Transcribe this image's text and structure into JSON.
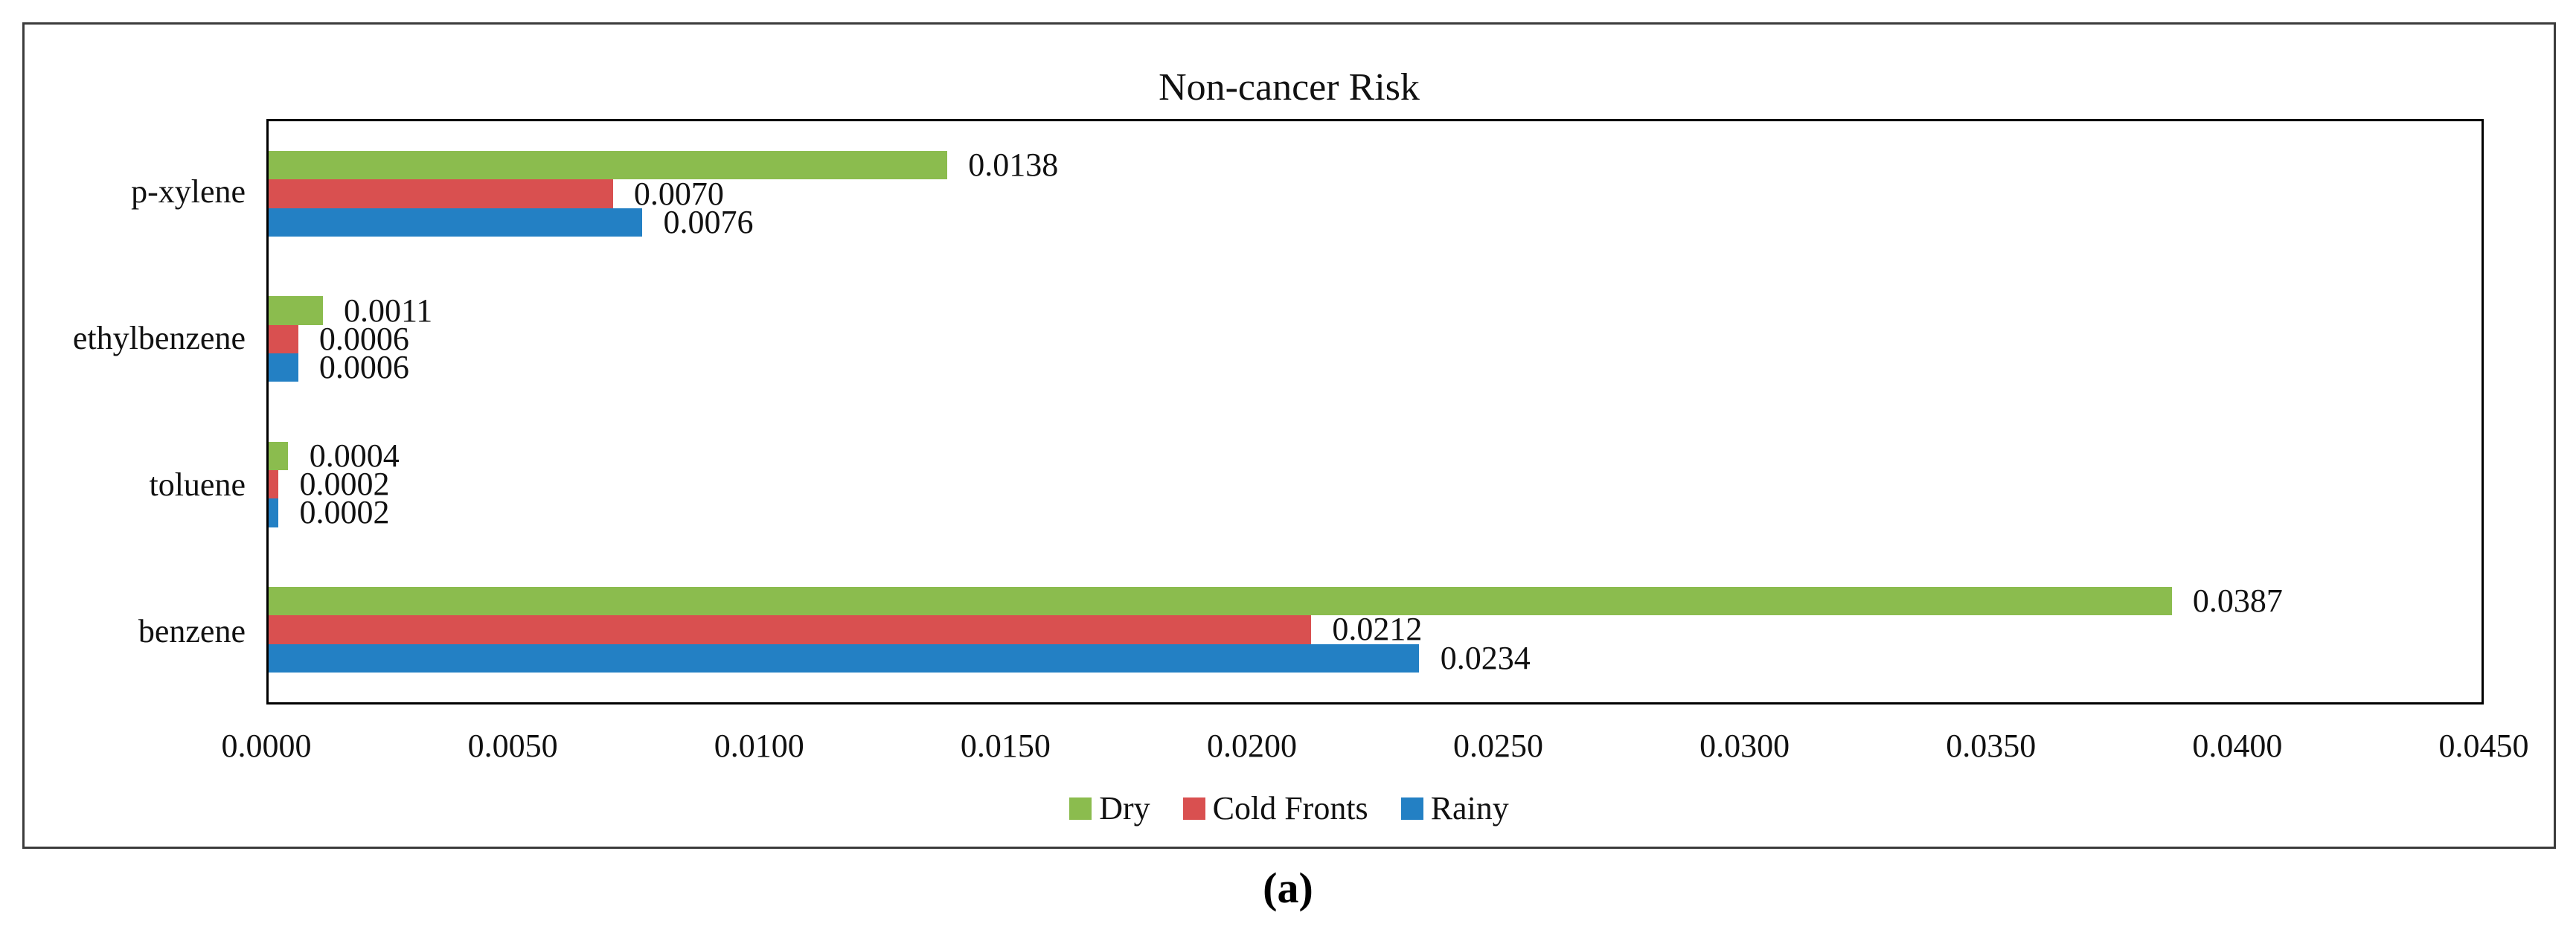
{
  "figure": {
    "caption": "(a)"
  },
  "chart_data": {
    "type": "bar",
    "orientation": "horizontal",
    "title": "Non-cancer Risk",
    "categories": [
      "p-xylene",
      "ethylbenzene",
      "toluene",
      "benzene"
    ],
    "series": [
      {
        "name": "Dry",
        "color": "#8BBC4E",
        "values": [
          0.0138,
          0.0011,
          0.0004,
          0.0387
        ],
        "labels": [
          "0.0138",
          "0.0011",
          "0.0004",
          "0.0387"
        ]
      },
      {
        "name": "Cold Fronts",
        "color": "#D95050",
        "values": [
          0.007,
          0.0006,
          0.0002,
          0.0212
        ],
        "labels": [
          "0.0070",
          "0.0006",
          "0.0002",
          "0.0212"
        ]
      },
      {
        "name": "Rainy",
        "color": "#2380C4",
        "values": [
          0.0076,
          0.0006,
          0.0002,
          0.0234
        ],
        "labels": [
          "0.0076",
          "0.0006",
          "0.0002",
          "0.0234"
        ]
      }
    ],
    "x_axis": {
      "min": 0.0,
      "max": 0.045,
      "tick_step": 0.005,
      "tick_labels": [
        "0.0000",
        "0.0050",
        "0.0100",
        "0.0150",
        "0.0200",
        "0.0250",
        "0.0300",
        "0.0350",
        "0.0400",
        "0.0450"
      ]
    },
    "legend": {
      "position": "bottom",
      "entries": [
        "Dry",
        "Cold Fronts",
        "Rainy"
      ]
    },
    "grid": false,
    "plot_border_color": "#000000",
    "figure_border_color": "#3c3c3c"
  }
}
